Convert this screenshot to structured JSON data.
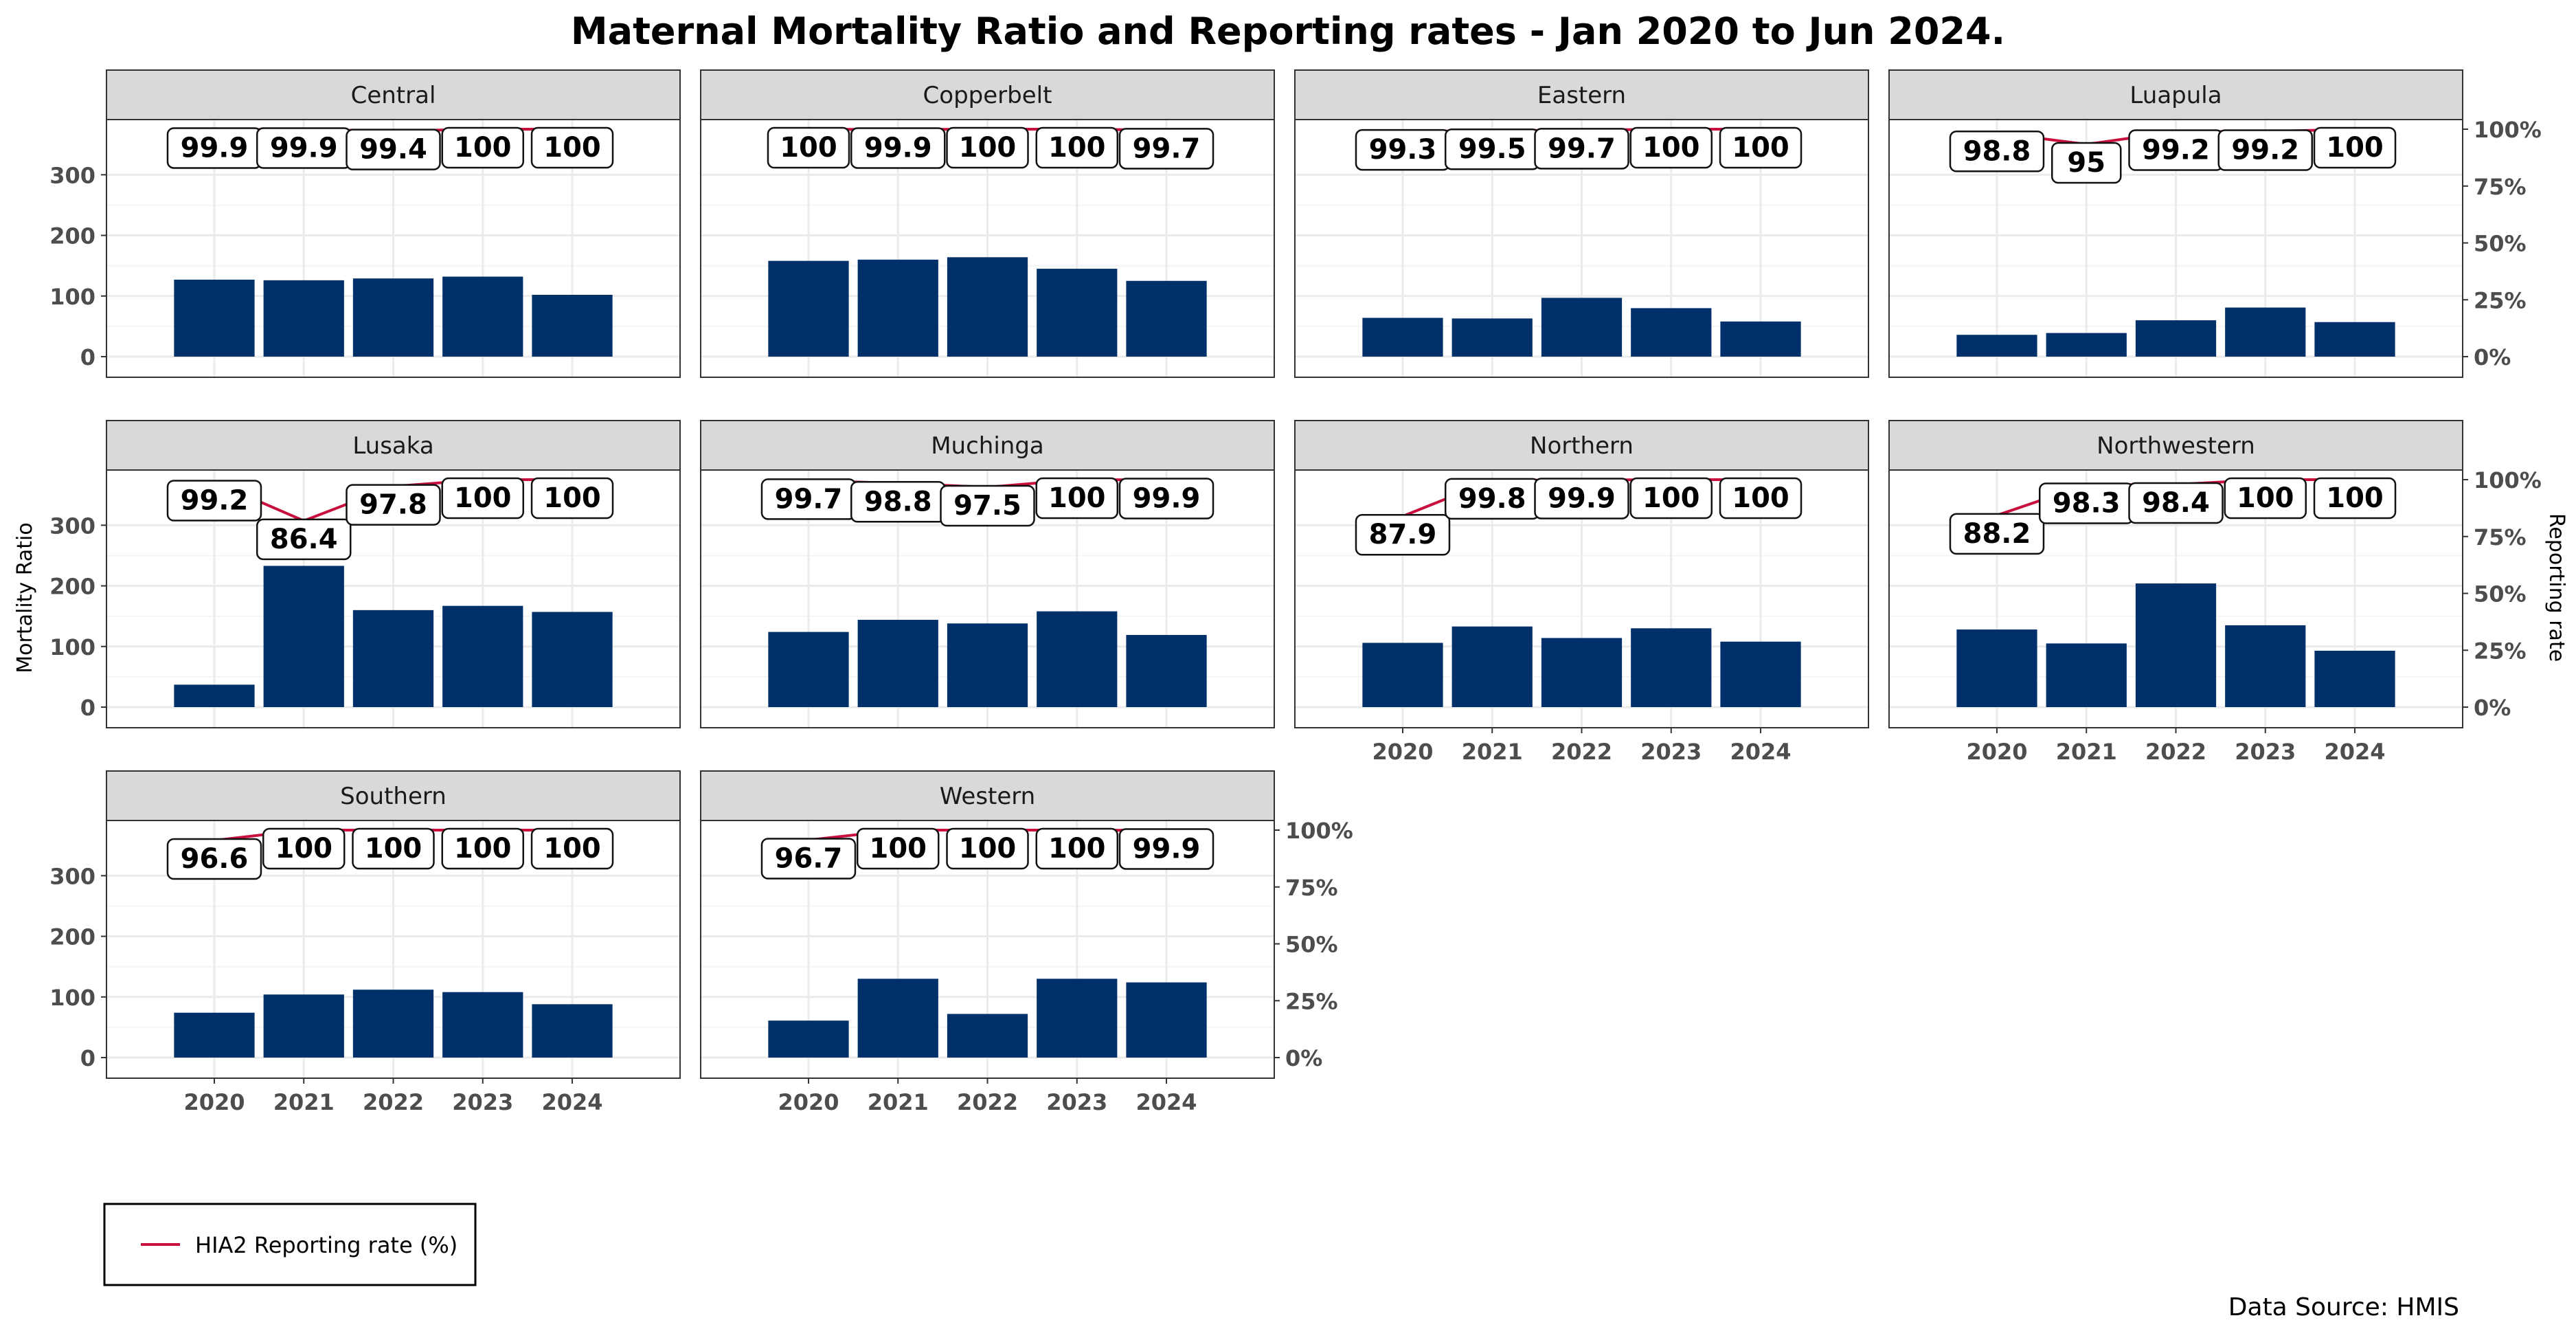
{
  "title": "Maternal Mortality Ratio and Reporting rates - Jan 2020 to Jun 2024.",
  "source_note": "Data Source: HMIS",
  "legend": {
    "label": "HIA2 Reporting rate (%)",
    "color": "#c8103e"
  },
  "colors": {
    "bar": "#003069",
    "line": "#c8103e",
    "strip_bg": "#d9d9d9",
    "panel_border": "#333333",
    "grid": "#ebebeb"
  },
  "chart_data": {
    "type": "bar",
    "facet_layout": "4 columns x 3 rows, free y per row",
    "categories": [
      "2020",
      "2021",
      "2022",
      "2023",
      "2024"
    ],
    "xlabel": "",
    "ylabel": "Mortality Ratio",
    "y2label": "Reporting rate",
    "ylim": [
      0,
      350
    ],
    "yticks": [
      0,
      100,
      200,
      300
    ],
    "y2_ticks": [
      "0%",
      "25%",
      "50%",
      "75%",
      "100%"
    ],
    "legend_position": "bottom-left",
    "grid": true,
    "panels": [
      {
        "name": "Central",
        "mortality": [
          127,
          126,
          129,
          132,
          102
        ],
        "reporting_rate": [
          99.9,
          99.9,
          99.4,
          100,
          100
        ],
        "rate_labels": [
          "99.9",
          "99.9",
          "99.4",
          "100",
          "100"
        ]
      },
      {
        "name": "Copperbelt",
        "mortality": [
          158,
          160,
          164,
          145,
          125
        ],
        "reporting_rate": [
          100,
          99.9,
          100,
          100,
          99.7
        ],
        "rate_labels": [
          "100",
          "99.9",
          "100",
          "100",
          "99.7"
        ]
      },
      {
        "name": "Eastern",
        "mortality": [
          64,
          63,
          97,
          80,
          58
        ],
        "reporting_rate": [
          99.3,
          99.5,
          99.7,
          100,
          100
        ],
        "rate_labels": [
          "99.3",
          "99.5",
          "99.7",
          "100",
          "100"
        ]
      },
      {
        "name": "Luapula",
        "mortality": [
          36,
          39,
          60,
          81,
          57
        ],
        "reporting_rate": [
          98.8,
          95,
          99.2,
          99.2,
          100
        ],
        "rate_labels": [
          "98.8",
          "95",
          "99.2",
          "99.2",
          "100"
        ]
      },
      {
        "name": "Lusaka",
        "mortality": [
          37,
          233,
          160,
          167,
          157
        ],
        "reporting_rate": [
          99.2,
          86.4,
          97.8,
          100,
          100
        ],
        "rate_labels": [
          "99.2",
          "86.4",
          "97.8",
          "100",
          "100"
        ]
      },
      {
        "name": "Muchinga",
        "mortality": [
          124,
          144,
          138,
          158,
          119
        ],
        "reporting_rate": [
          99.7,
          98.8,
          97.5,
          100,
          99.9
        ],
        "rate_labels": [
          "99.7",
          "98.8",
          "97.5",
          "100",
          "99.9"
        ]
      },
      {
        "name": "Northern",
        "mortality": [
          106,
          133,
          114,
          130,
          108
        ],
        "reporting_rate": [
          87.9,
          99.8,
          99.9,
          100,
          100
        ],
        "rate_labels": [
          "87.9",
          "99.8",
          "99.9",
          "100",
          "100"
        ]
      },
      {
        "name": "Northwestern",
        "mortality": [
          128,
          105,
          204,
          135,
          93
        ],
        "reporting_rate": [
          88.2,
          98.3,
          98.4,
          100,
          100
        ],
        "rate_labels": [
          "88.2",
          "98.3",
          "98.4",
          "100",
          "100"
        ]
      },
      {
        "name": "Southern",
        "mortality": [
          74,
          104,
          112,
          108,
          88
        ],
        "reporting_rate": [
          96.6,
          100,
          100,
          100,
          100
        ],
        "rate_labels": [
          "96.6",
          "100",
          "100",
          "100",
          "100"
        ]
      },
      {
        "name": "Western",
        "mortality": [
          61,
          130,
          72,
          130,
          124
        ],
        "reporting_rate": [
          96.7,
          100,
          100,
          100,
          99.9
        ],
        "rate_labels": [
          "96.7",
          "100",
          "100",
          "100",
          "99.9"
        ]
      }
    ]
  }
}
